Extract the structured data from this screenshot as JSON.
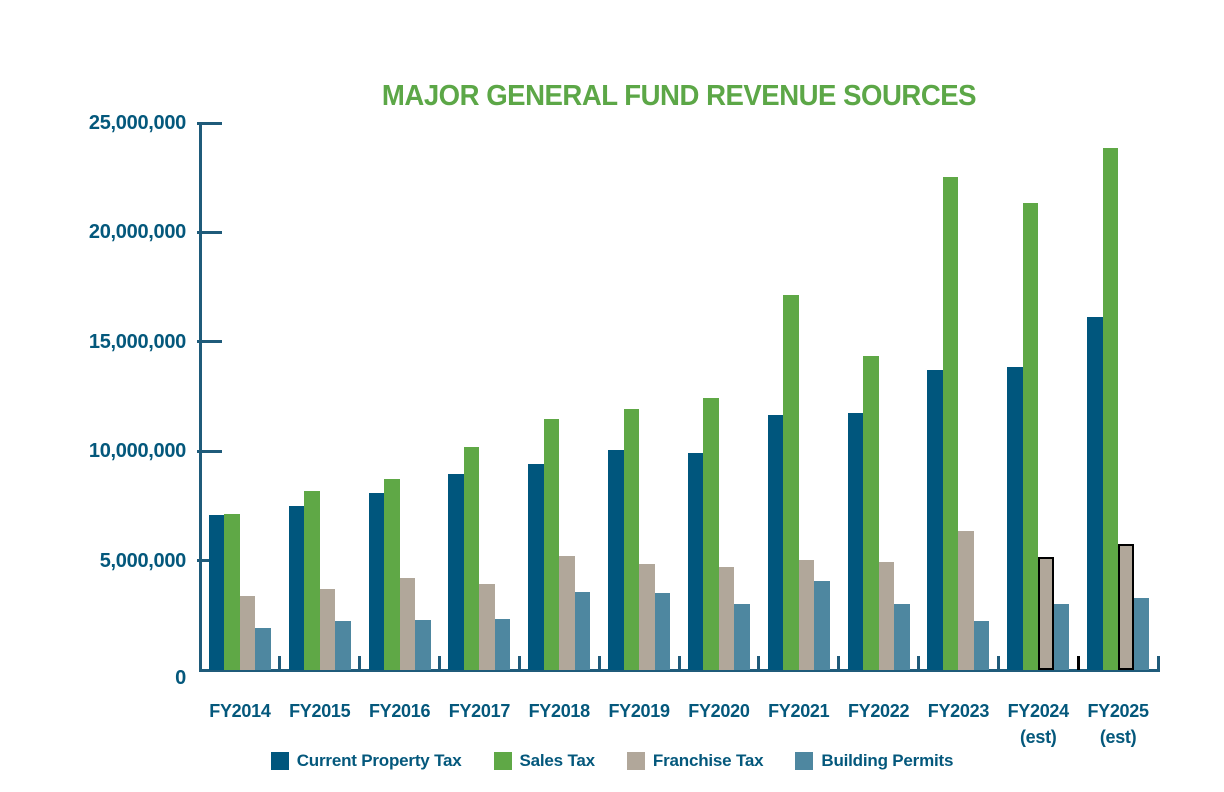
{
  "colors": {
    "title_green": "#5ca747",
    "text_navy": "#04587c",
    "axis": "#1f5b7a",
    "estimate_outline": "#000000"
  },
  "chart_data": {
    "type": "bar",
    "title": "MAJOR GENERAL FUND REVENUE SOURCES",
    "categories": [
      {
        "label": "FY2014",
        "sublabel": ""
      },
      {
        "label": "FY2015",
        "sublabel": ""
      },
      {
        "label": "FY2016",
        "sublabel": ""
      },
      {
        "label": "FY2017",
        "sublabel": ""
      },
      {
        "label": "FY2018",
        "sublabel": ""
      },
      {
        "label": "FY2019",
        "sublabel": ""
      },
      {
        "label": "FY2020",
        "sublabel": ""
      },
      {
        "label": "FY2021",
        "sublabel": ""
      },
      {
        "label": "FY2022",
        "sublabel": ""
      },
      {
        "label": "FY2023",
        "sublabel": ""
      },
      {
        "label": "FY2024",
        "sublabel": "(est)"
      },
      {
        "label": "FY2025",
        "sublabel": "(est)"
      }
    ],
    "series": [
      {
        "name": "Current Property Tax",
        "color": "#00567d",
        "values": [
          7100000,
          7500000,
          8100000,
          8950000,
          9400000,
          10050000,
          9900000,
          11650000,
          11750000,
          13700000,
          13850000,
          16150000
        ]
      },
      {
        "name": "Sales Tax",
        "color": "#5fa846",
        "values": [
          7150000,
          8200000,
          8750000,
          10200000,
          11450000,
          11950000,
          12450000,
          17150000,
          14350000,
          22550000,
          21350000,
          23850000
        ]
      },
      {
        "name": "Franchise Tax",
        "color": "#b1a79a",
        "values": [
          3400000,
          3700000,
          4200000,
          3950000,
          5200000,
          4850000,
          4700000,
          5050000,
          4950000,
          6350000,
          5150000,
          5750000
        ],
        "outlined_value_indices": [
          10,
          11
        ],
        "outline_color": "#000000"
      },
      {
        "name": "Building Permits",
        "color": "#4e87a0",
        "values": [
          1900000,
          2250000,
          2300000,
          2350000,
          3550000,
          3500000,
          3000000,
          4050000,
          3000000,
          2250000,
          3000000,
          3300000
        ]
      }
    ],
    "y_axis": {
      "min": 0,
      "max": 25000000,
      "tick_interval": 5000000,
      "tick_labels": [
        "0",
        "5,000,000",
        "10,000,000",
        "15,000,000",
        "20,000,000",
        "25,000,000"
      ]
    },
    "x_axis": {
      "black_tick_boundary_index": 11
    },
    "grid": false,
    "legend_position": "bottom"
  }
}
